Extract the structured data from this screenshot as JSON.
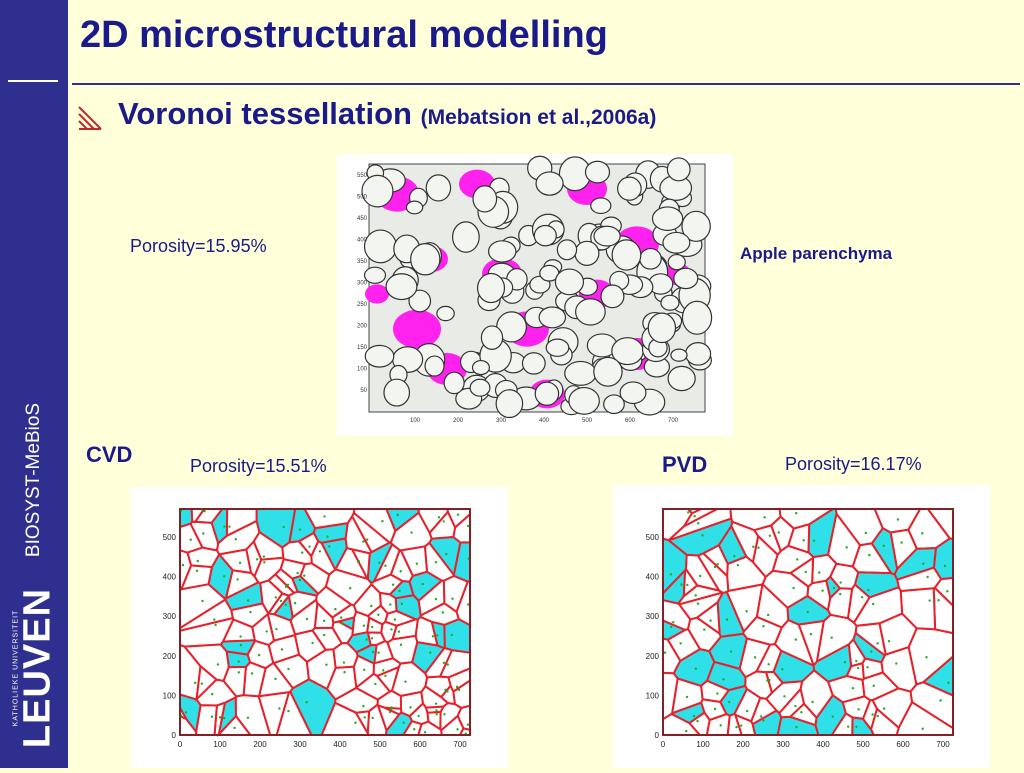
{
  "slide": {
    "title": "2D microstructural modelling",
    "subtitle": "Voronoi tessellation",
    "reference": "(Mebatsion et al.,2006a)"
  },
  "sidebar": {
    "org_label": "BIOSYST-MeBioS",
    "logo_small": "KATHOLIEKE UNIVERSITEIT",
    "logo_big": "LEUVEN"
  },
  "apple": {
    "porosity": "Porosity=15.95%",
    "label": "Apple parenchyma",
    "y_ticks": [
      "550",
      "500",
      "450",
      "400",
      "350",
      "300",
      "250",
      "200",
      "150",
      "100",
      "50"
    ],
    "x_ticks": [
      "100",
      "200",
      "300",
      "400",
      "500",
      "600",
      "700"
    ]
  },
  "cvd": {
    "label": "CVD",
    "porosity": "Porosity=15.51%",
    "y_ticks": [
      "500",
      "400",
      "300",
      "200",
      "100",
      "0"
    ],
    "x_ticks": [
      "0",
      "100",
      "200",
      "300",
      "400",
      "500",
      "600",
      "700"
    ]
  },
  "pvd": {
    "label": "PVD",
    "porosity": "Porosity=16.17%",
    "y_ticks": [
      "500",
      "400",
      "300",
      "200",
      "100",
      "0"
    ],
    "x_ticks": [
      "0",
      "100",
      "200",
      "300",
      "400",
      "500",
      "600",
      "700"
    ]
  },
  "colors": {
    "sidebar": "#2f2f8f",
    "title": "#1a1a8a",
    "background": "#ffffd9",
    "voronoi_edge": "#e8202a",
    "pore_cyan": "#30e0e8",
    "pore_magenta": "#ff22ee"
  }
}
